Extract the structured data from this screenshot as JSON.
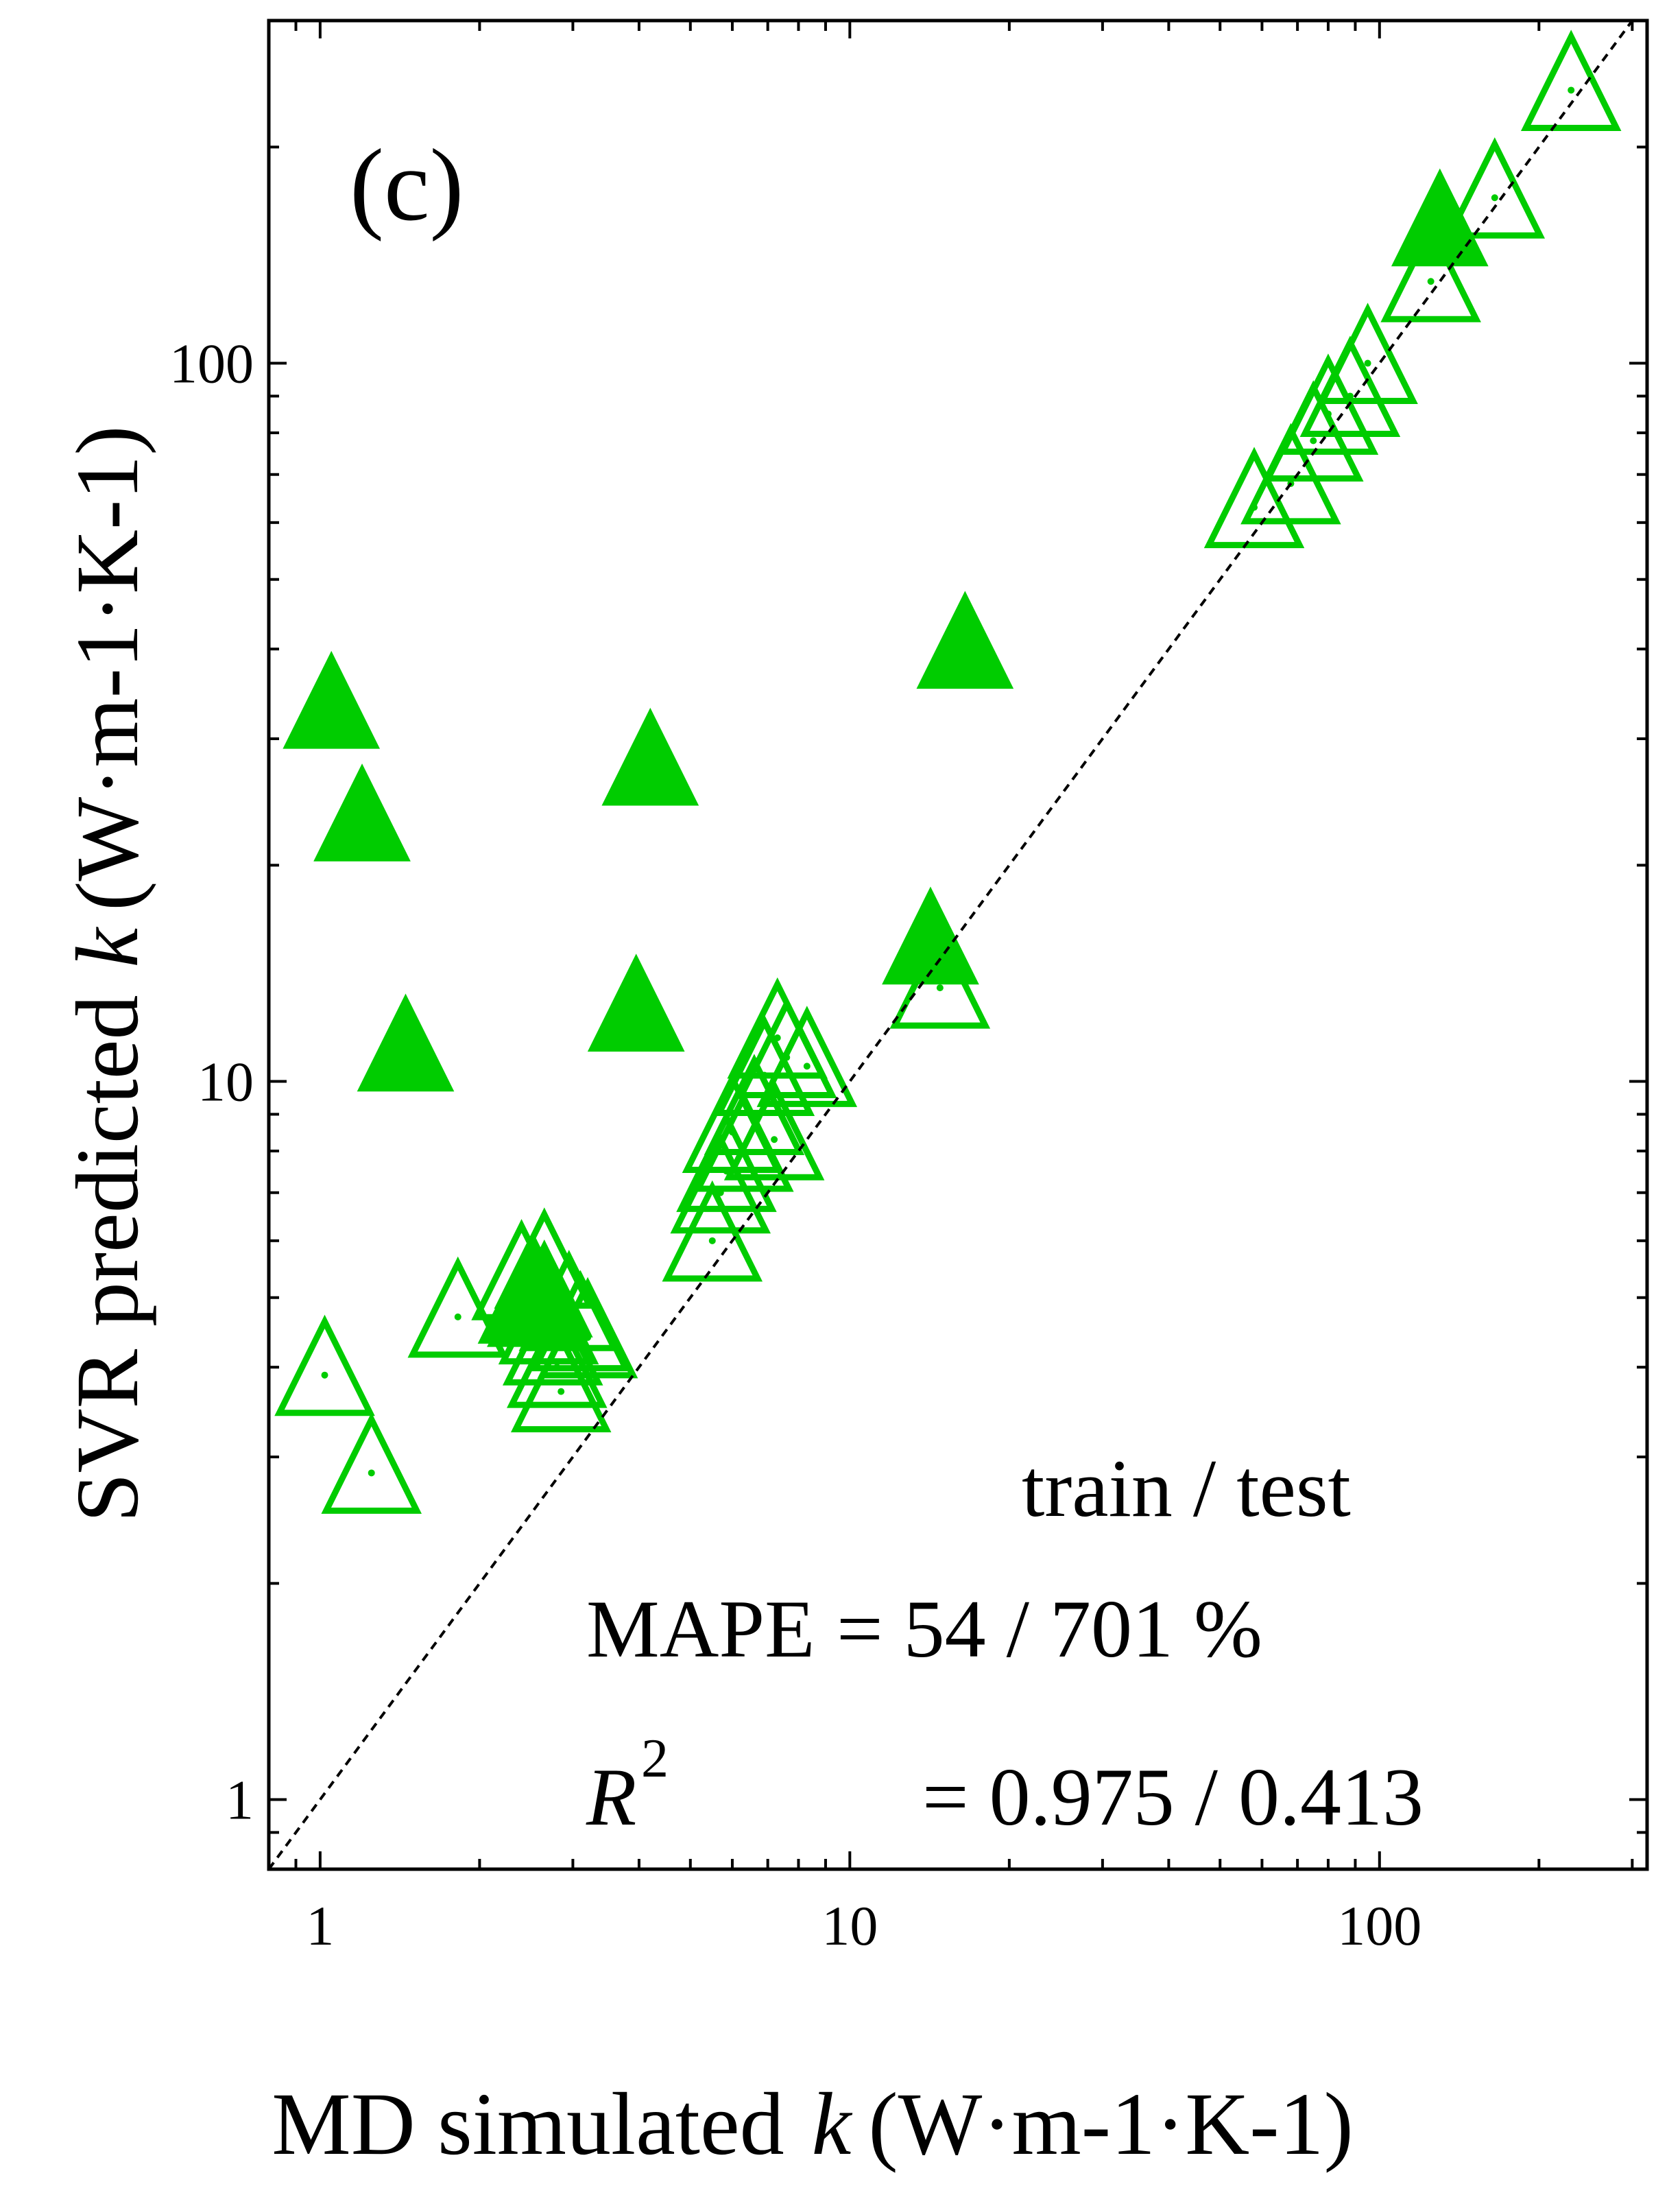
{
  "chart_data": {
    "type": "scatter",
    "panel_label": "(c)",
    "xlabel": {
      "prefix": "MD simulated",
      "var": "k",
      "unit": "(W·m-1·K-1)"
    },
    "ylabel": {
      "prefix": "SVR predicted",
      "var": "k",
      "unit": "(W·m-1·K-1)"
    },
    "xscale": "log",
    "yscale": "log",
    "xlim": [
      0.8,
      320
    ],
    "ylim": [
      0.8,
      300
    ],
    "x_ticks": [
      {
        "value": 1,
        "label": "1"
      },
      {
        "value": 10,
        "label": "10"
      },
      {
        "value": 100,
        "label": "100"
      }
    ],
    "y_ticks": [
      {
        "value": 1,
        "label": "1"
      },
      {
        "value": 10,
        "label": "10"
      },
      {
        "value": 100,
        "label": "100"
      }
    ],
    "grid": false,
    "reference_line": "y = x (dashed)",
    "marker_color": "#00cc00",
    "annotation": {
      "header": "train / test",
      "mape_label": "MAPE",
      "mape_value": "= 54 / 701 %",
      "r2_label": "R",
      "r2_sup": "2",
      "r2_value": "= 0.975 / 0.413"
    },
    "series": [
      {
        "marker": "open-triangle",
        "points": [
          [
            230,
            240
          ],
          [
            165,
            170
          ],
          [
            125,
            130
          ],
          [
            95,
            100
          ],
          [
            88,
            90
          ],
          [
            80,
            85
          ],
          [
            75,
            78
          ],
          [
            68,
            68
          ],
          [
            58,
            63
          ],
          [
            1.02,
            3.9
          ],
          [
            1.25,
            2.85
          ],
          [
            1.82,
            4.7
          ],
          [
            2.4,
            5.3
          ],
          [
            2.55,
            5.0
          ],
          [
            2.65,
            5.5
          ],
          [
            2.7,
            4.6
          ],
          [
            2.75,
            4.3
          ],
          [
            2.8,
            4.0
          ],
          [
            2.85,
            3.7
          ],
          [
            2.95,
            4.8
          ],
          [
            3.1,
            4.5
          ],
          [
            3.2,
            4.4
          ],
          [
            5.5,
            6.0
          ],
          [
            5.7,
            7.0
          ],
          [
            5.85,
            7.5
          ],
          [
            6.0,
            8.5
          ],
          [
            6.3,
            8.0
          ],
          [
            6.6,
            9.0
          ],
          [
            6.9,
            10.2
          ],
          [
            7.2,
            8.3
          ],
          [
            7.3,
            11.5
          ],
          [
            7.6,
            10.8
          ],
          [
            8.3,
            10.5
          ],
          [
            14.8,
            13.5
          ]
        ]
      },
      {
        "marker": "filled-triangle",
        "points": [
          [
            1.05,
            33
          ],
          [
            1.2,
            23
          ],
          [
            1.45,
            11
          ],
          [
            2.45,
            4.9
          ],
          [
            2.55,
            4.85
          ],
          [
            2.65,
            5.0
          ],
          [
            3.95,
            12.5
          ],
          [
            4.2,
            27.5
          ],
          [
            14.2,
            15.5
          ],
          [
            16.5,
            40
          ],
          [
            130,
            155
          ]
        ]
      }
    ]
  }
}
